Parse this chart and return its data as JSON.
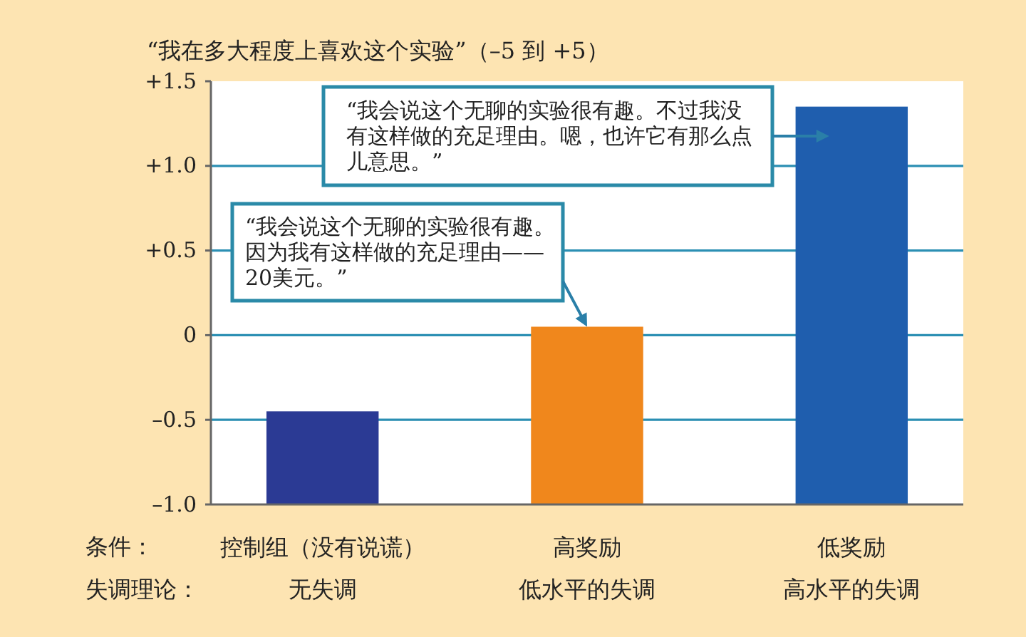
{
  "chart_data": {
    "type": "bar",
    "ylabel": "“我在多大程度上喜欢这个实验”（–5 到 +5）",
    "categories": [
      "控制组（没有说谎）",
      "高奖励",
      "低奖励"
    ],
    "base": [
      -1,
      -1,
      -1
    ],
    "values": [
      0.55,
      1.05,
      2.35
    ],
    "colors": [
      "#2b3a94",
      "#f0871c",
      "#1f5eae"
    ],
    "ylim": [
      -1,
      1.5
    ],
    "yticks": [
      {
        "value": 1.5,
        "label": "+1.5"
      },
      {
        "value": 1,
        "label": "+1.0"
      },
      {
        "value": 0.5,
        "label": "+0.5"
      },
      0,
      {
        "value": -0.5,
        "label": "–0.5"
      },
      {
        "value": -1,
        "label": "–1.0"
      }
    ],
    "grid": "y",
    "annotations": [
      "条件：",
      "失调理论：",
      "无失调",
      "低水平的失调",
      "高水平的失调",
      "“我会说这个无聊的实验很有趣。不过我没有这样做的充足理由。嗯，也许它有那么点儿意思。”",
      {
        "text": "“我会说这个无聊的实验很有趣。因为我有这样做的充足理由——20美元。”",
        "x": "高奖励",
        "y": 0.05
      }
    ]
  }
}
